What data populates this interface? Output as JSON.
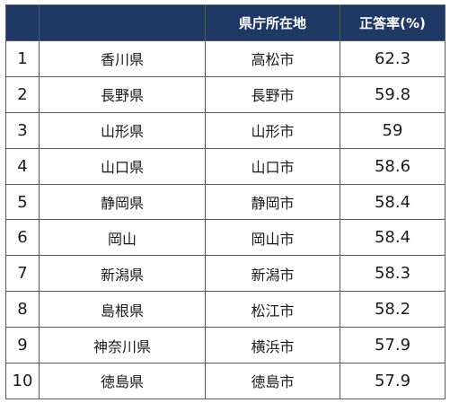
{
  "table": {
    "headers": {
      "rank": "",
      "prefecture": "",
      "capital": "県庁所在地",
      "rate": "正答率(%)"
    },
    "header_color": "#1f3864",
    "rows": [
      {
        "rank": "1",
        "prefecture": "香川県",
        "capital": "高松市",
        "rate": "62.3"
      },
      {
        "rank": "2",
        "prefecture": "長野県",
        "capital": "長野市",
        "rate": "59.8"
      },
      {
        "rank": "3",
        "prefecture": "山形県",
        "capital": "山形市",
        "rate": "59"
      },
      {
        "rank": "4",
        "prefecture": "山口県",
        "capital": "山口市",
        "rate": "58.6"
      },
      {
        "rank": "5",
        "prefecture": "静岡県",
        "capital": "静岡市",
        "rate": "58.4"
      },
      {
        "rank": "6",
        "prefecture": "岡山",
        "capital": "岡山市",
        "rate": "58.4"
      },
      {
        "rank": "7",
        "prefecture": "新潟県",
        "capital": "新潟市",
        "rate": "58.3"
      },
      {
        "rank": "8",
        "prefecture": "島根県",
        "capital": "松江市",
        "rate": "58.2"
      },
      {
        "rank": "9",
        "prefecture": "神奈川県",
        "capital": "横浜市",
        "rate": "57.9"
      },
      {
        "rank": "10",
        "prefecture": "徳島県",
        "capital": "徳島市",
        "rate": "57.9"
      }
    ]
  }
}
